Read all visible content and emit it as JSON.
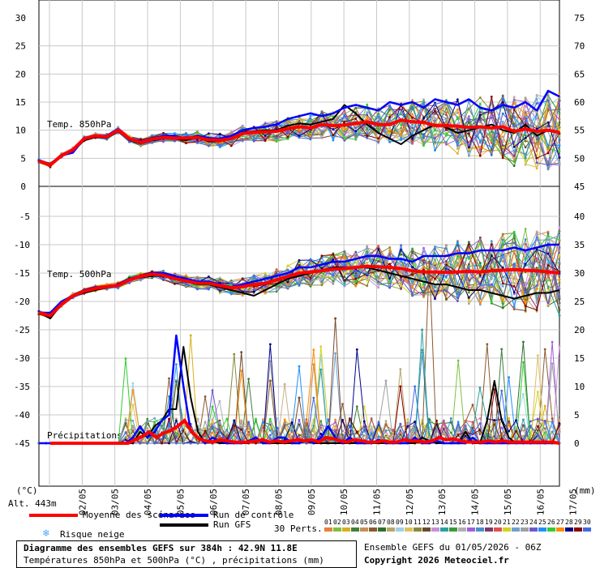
{
  "chart_data": {
    "type": "line",
    "x_labels": [
      "02/05",
      "03/05",
      "04/05",
      "05/05",
      "06/05",
      "07/05",
      "08/05",
      "09/05",
      "10/05",
      "11/05",
      "12/05",
      "13/05",
      "14/05",
      "15/05",
      "16/05",
      "17/05"
    ],
    "panels": {
      "t850": {
        "label": "Temp. 850hPa",
        "left_ticks": [
          30,
          25,
          20,
          15,
          10,
          5,
          0
        ],
        "right_ticks": [
          75,
          70,
          65,
          60,
          55,
          50,
          45
        ],
        "ylim": [
          0,
          30
        ],
        "mean_series": {
          "name": "Moyenne des scénarios",
          "values": [
            4.5,
            3.8,
            5.5,
            6.5,
            8.5,
            9,
            8.8,
            10,
            8.5,
            7.8,
            8.4,
            8.7,
            8.6,
            8.6,
            8.7,
            8.3,
            8.2,
            8.5,
            9.4,
            9.6,
            9.7,
            9.8,
            10.3,
            10.6,
            10.4,
            11.0,
            10.8,
            10.9,
            11.2,
            11.5,
            11.0,
            11.0,
            11.8,
            11.5,
            11.4,
            10.8,
            10.8,
            10.7,
            10.5,
            10.6,
            10.4,
            10.6,
            9.8,
            10.2,
            9.8,
            10.0,
            9.6
          ]
        },
        "control_series": {
          "name": "Run de contrôle",
          "values": [
            4.5,
            4,
            5.5,
            6,
            8.5,
            9,
            9,
            10.2,
            8.5,
            8,
            8.5,
            9,
            9,
            8.5,
            9,
            8.6,
            8.5,
            9,
            10,
            10.4,
            10.6,
            11,
            12,
            12.5,
            13,
            12.5,
            13,
            14,
            14.5,
            14,
            13.5,
            15,
            14.5,
            15,
            14,
            15.5,
            15,
            14.5,
            15.5,
            14,
            13.5,
            14.5,
            14,
            15,
            13.5,
            17,
            16
          ]
        },
        "gfs_series": {
          "name": "Run GFS",
          "values": [
            4.5,
            3.8,
            5.5,
            6.2,
            8.2,
            8.8,
            8.6,
            9.8,
            8.3,
            7.6,
            8.2,
            8.6,
            8.5,
            8.2,
            8.7,
            8.0,
            8.0,
            8.6,
            9.6,
            9.8,
            10.0,
            10.0,
            10.8,
            11.2,
            11.0,
            11.5,
            12.0,
            14.5,
            13.0,
            11.0,
            9.5,
            8.5,
            7.5,
            9.0,
            10.0,
            11.0,
            10.5,
            9.5,
            10.0,
            10.5,
            11.0,
            10.0,
            9.5,
            11.0,
            9.0,
            10.0,
            9.5
          ]
        }
      },
      "t500": {
        "label": "Temp. 500hPa",
        "left_ticks": [
          -5,
          -10,
          -15,
          -20,
          -25,
          -30,
          -35,
          -40,
          -45
        ],
        "right_ticks": [
          40,
          35,
          30,
          25,
          20,
          15,
          10,
          5,
          0
        ],
        "ylim": [
          -50,
          0
        ],
        "mean_series": {
          "name": "Moyenne des scénarios",
          "values": [
            -22,
            -22.5,
            -20.5,
            -19,
            -18.2,
            -17.7,
            -17.4,
            -17.2,
            -16.2,
            -15.6,
            -15.2,
            -15.4,
            -16.0,
            -16.4,
            -16.8,
            -16.8,
            -17.2,
            -17.6,
            -17.4,
            -17.0,
            -16.8,
            -16.2,
            -15.6,
            -15.0,
            -14.8,
            -14.6,
            -14.3,
            -14.2,
            -14.0,
            -13.8,
            -13.9,
            -14.0,
            -14.2,
            -14.6,
            -14.8,
            -14.8,
            -14.9,
            -14.8,
            -14.7,
            -14.8,
            -14.6,
            -14.5,
            -14.4,
            -14.5,
            -14.6,
            -14.8,
            -15.0
          ]
        },
        "control_series": {
          "name": "Run de contrôle",
          "values": [
            -22,
            -22,
            -20,
            -19,
            -18,
            -17.5,
            -17.5,
            -17,
            -16,
            -15.5,
            -15,
            -15,
            -15.5,
            -16,
            -16.5,
            -16.5,
            -17,
            -17.5,
            -17,
            -16.5,
            -16,
            -15.5,
            -15,
            -14,
            -14,
            -13.5,
            -13,
            -13,
            -12.5,
            -12,
            -12,
            -12.5,
            -12.5,
            -13,
            -12,
            -12,
            -12,
            -11.5,
            -11.5,
            -11,
            -11,
            -11,
            -10.5,
            -11,
            -10.5,
            -10,
            -10
          ]
        },
        "gfs_series": {
          "name": "Run GFS",
          "values": [
            -22,
            -23,
            -20.5,
            -19,
            -18.5,
            -18,
            -17.5,
            -17,
            -16,
            -15.8,
            -15.5,
            -15.5,
            -16,
            -16.5,
            -17,
            -17,
            -17.5,
            -18,
            -18.5,
            -19,
            -18,
            -17,
            -16,
            -15.5,
            -15,
            -14.5,
            -14,
            -14,
            -14,
            -14,
            -14.5,
            -15,
            -15.5,
            -16,
            -16.5,
            -17,
            -17,
            -17.5,
            -18,
            -18,
            -18.5,
            -19,
            -19.5,
            -19,
            -18.5,
            -18.5,
            -18
          ]
        }
      },
      "precip": {
        "label": "Précipitations",
        "ylim": [
          0,
          15
        ],
        "mean_series": {
          "name": "Moyenne des scénarios",
          "values": [
            0,
            0,
            0,
            0,
            0,
            0,
            0,
            0,
            0,
            0,
            0,
            0,
            0.3,
            0.6,
            1.0,
            0.5,
            0.9,
            1.1,
            1.5,
            2.0,
            1.0,
            0.4,
            0.2,
            0.1,
            0.3,
            0.2,
            0.1,
            0.1,
            0.1,
            0.2,
            0.3,
            0.1,
            0.2,
            0.1,
            0.2,
            0.3,
            0.2,
            0.3,
            0.1,
            0.5,
            0.4,
            0.2,
            0.1,
            0.3,
            0.2,
            0.1,
            0.1,
            0.2,
            0.1,
            0.1,
            0.3,
            0.2,
            0.2,
            0.1,
            0.2,
            0.5,
            0.3,
            0.4,
            0.2,
            0.1,
            0.1,
            0.1,
            0.2,
            0.1,
            0.2,
            0.1,
            0.1,
            0.1,
            0.1,
            0.1,
            0.1,
            0.1,
            0.0
          ]
        },
        "control_series": {
          "name": "Run de contrôle",
          "values": [
            0,
            0,
            0,
            0,
            0,
            0,
            0,
            0,
            0,
            0,
            0,
            0,
            0,
            0.5,
            1.5,
            0.5,
            1,
            2,
            2.5,
            9.5,
            5,
            1,
            0.5,
            0,
            0.5,
            0.2,
            0,
            0,
            0,
            0.2,
            0.5,
            0,
            0,
            0.5,
            0.5,
            0,
            0,
            0.3,
            0,
            0.5,
            1.5,
            0.5,
            0,
            0.5,
            0,
            0,
            0,
            0.3,
            0,
            0,
            0,
            0,
            0.5,
            0,
            0,
            0.2,
            0,
            0,
            0,
            0,
            0.5,
            0,
            0,
            0,
            0,
            0,
            0,
            0,
            0,
            0,
            0,
            0,
            0
          ]
        },
        "gfs_series": {
          "name": "Run GFS",
          "values": [
            0,
            0,
            0,
            0,
            0,
            0,
            0,
            0,
            0,
            0,
            0,
            0,
            0,
            0,
            1,
            0.5,
            1.5,
            2,
            3,
            3,
            8.5,
            4,
            1,
            0,
            0.2,
            0,
            0,
            0,
            0,
            0,
            0.5,
            0,
            0,
            0,
            0,
            0,
            0,
            0.2,
            0,
            0,
            0,
            0,
            0,
            0,
            0,
            0,
            0,
            0,
            0,
            0,
            0,
            0,
            0,
            0.5,
            0.2,
            0,
            0,
            0,
            0,
            1,
            0,
            0,
            2,
            5.5,
            2,
            0.5,
            0,
            0,
            0,
            0,
            0,
            0,
            0
          ]
        }
      }
    },
    "bottom_axis_units": {
      "left": "(°C)",
      "right": "(mm)"
    },
    "member_labels": [
      "01",
      "02",
      "03",
      "04",
      "05",
      "06",
      "07",
      "08",
      "09",
      "10",
      "11",
      "12",
      "13",
      "14",
      "15",
      "16",
      "17",
      "18",
      "19",
      "20",
      "21",
      "22",
      "23",
      "24",
      "25",
      "26",
      "27",
      "28",
      "29",
      "30"
    ],
    "member_colors": [
      "#e87f3a",
      "#7fbf3f",
      "#d9b01c",
      "#3f7f3f",
      "#c78f55",
      "#8b5a2b",
      "#2f6f2f",
      "#b9a66b",
      "#9dd1e8",
      "#e0c060",
      "#8a8a3a",
      "#6a4a2a",
      "#c88fd8",
      "#2aa0a0",
      "#3a9a3a",
      "#b0b0b0",
      "#9f5fdf",
      "#4a90c8",
      "#7d3a6d",
      "#e05050",
      "#d3d320",
      "#70a0d0",
      "#a0a0a0",
      "#6a5acd",
      "#1e90ff",
      "#32cd32",
      "#ff8c00",
      "#00008b",
      "#8b0000",
      "#4169e1"
    ]
  },
  "labels": {
    "alt": "Alt. 443m",
    "unit_left": "(°C)",
    "unit_right": "(mm)",
    "mean": "Moyenne des scénarios",
    "control": "Run de contrôle",
    "gfs": "Run GFS",
    "snow": "Risque neige",
    "perts": "30 Perts.",
    "title": "Diagramme des ensembles GEFS sur 384h : 42.9N 11.8E",
    "subtitle": "Températures 850hPa et 500hPa (°C) , précipitations (mm)",
    "ensemble": "Ensemble GEFS du 01/05/2026 - 06Z",
    "copyright": "Copyright 2026 Meteociel.fr"
  },
  "colors": {
    "mean": "#ff0000",
    "control": "#0000ff",
    "gfs": "#000000",
    "snow": "#4da6ff"
  }
}
